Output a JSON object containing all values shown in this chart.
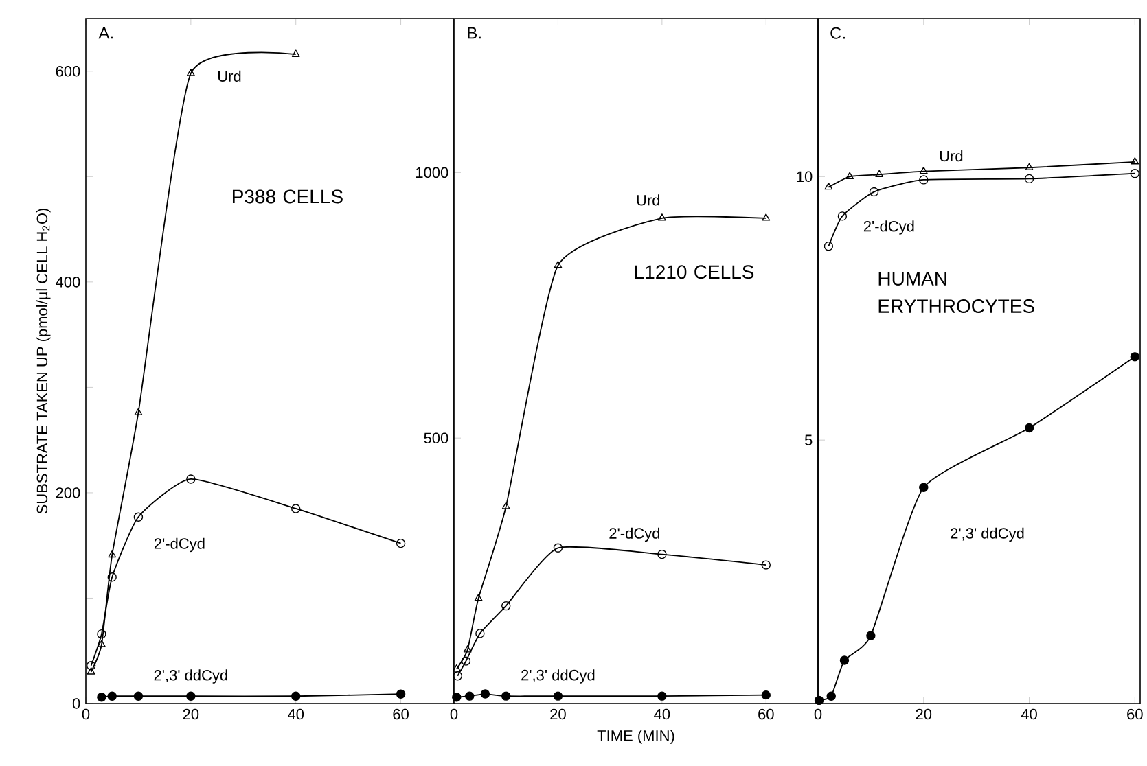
{
  "chart_data": [
    {
      "type": "line",
      "title": "A.",
      "subtitle": "P388 CELLS",
      "ylabel": "SUBSTRATE TAKEN UP (pmol/µl CELL H$_{2}$O)",
      "xlim": [
        0,
        70
      ],
      "ylim": [
        0,
        650
      ],
      "xticks": [
        0,
        20,
        40,
        60
      ],
      "yticks": [
        0,
        {
          "value": 100,
          "label": null
        },
        200,
        {
          "value": 300,
          "label": null
        },
        400,
        {
          "value": 500,
          "label": null
        },
        600
      ],
      "line_style": "solid",
      "series": [
        {
          "name": "Urd",
          "color": "#000000",
          "marker": "triangle",
          "x": [
            1,
            3,
            5,
            10,
            20,
            40
          ],
          "values": [
            30,
            56,
            141,
            276,
            598,
            616
          ]
        },
        {
          "name": "2'-dCyd",
          "color": "#000000",
          "marker": "circle",
          "x": [
            1,
            3,
            5,
            10,
            20,
            40,
            60
          ],
          "values": [
            36,
            66,
            120,
            177,
            213,
            185,
            152
          ]
        },
        {
          "name": "2',3' ddCyd",
          "color": "#000000",
          "marker": "circle",
          "x": [
            3,
            5,
            10,
            20,
            40,
            60
          ],
          "values": [
            6,
            7,
            7,
            7,
            7,
            9
          ]
        }
      ]
    },
    {
      "type": "line",
      "title": "B.",
      "subtitle": "L1210 CELLS",
      "xlabel": "TIME (MIN)",
      "xlim": [
        0,
        70
      ],
      "ylim": [
        0,
        1290
      ],
      "xticks": [
        0,
        20,
        40,
        60
      ],
      "yticks": [
        500,
        1000
      ],
      "line_style": "solid",
      "series": [
        {
          "name": "Urd",
          "color": "#000000",
          "marker": "triangle",
          "x": [
            0.5,
            2.6,
            4.7,
            10,
            20,
            40,
            60
          ],
          "values": [
            65,
            101,
            198,
            371,
            825,
            914,
            914
          ]
        },
        {
          "name": "2'-dCyd",
          "color": "#000000",
          "marker": "circle",
          "x": [
            0.7,
            2.3,
            5,
            10,
            20,
            40,
            60
          ],
          "values": [
            52,
            80,
            132,
            184,
            293,
            281,
            261
          ]
        },
        {
          "name": "2',3' ddCyd",
          "color": "#000000",
          "marker": "circle",
          "x": [
            0.5,
            3,
            6,
            10,
            20,
            40,
            60
          ],
          "values": [
            12,
            14,
            18,
            14,
            14,
            14,
            16
          ]
        }
      ]
    },
    {
      "type": "line",
      "title": "C.",
      "subtitle": "HUMAN ERYTHROCYTES",
      "xlim": [
        0,
        61
      ],
      "ylim": [
        0,
        13
      ],
      "xticks": [
        0,
        20,
        40,
        60
      ],
      "yticks": [
        5,
        10
      ],
      "line_style": "solid",
      "series": [
        {
          "name": "Urd",
          "color": "#000000",
          "marker": "triangle",
          "x": [
            2,
            6,
            11.6,
            20,
            40,
            60
          ],
          "values": [
            9.8,
            10,
            10.04,
            10.1,
            10.17,
            10.28
          ]
        },
        {
          "name": "2'-dCyd",
          "color": "#000000",
          "marker": "circle",
          "x": [
            2,
            4.6,
            10.6,
            20,
            40,
            60
          ],
          "values": [
            8.68,
            9.25,
            9.71,
            9.94,
            9.96,
            10.06
          ]
        },
        {
          "name": "2',3' ddCyd",
          "color": "#000000",
          "marker": "circle",
          "x": [
            0.2,
            2.5,
            5,
            10,
            20,
            40,
            60
          ],
          "values": [
            0.06,
            0.14,
            0.82,
            1.29,
            4.1,
            5.23,
            6.58
          ]
        }
      ]
    }
  ]
}
